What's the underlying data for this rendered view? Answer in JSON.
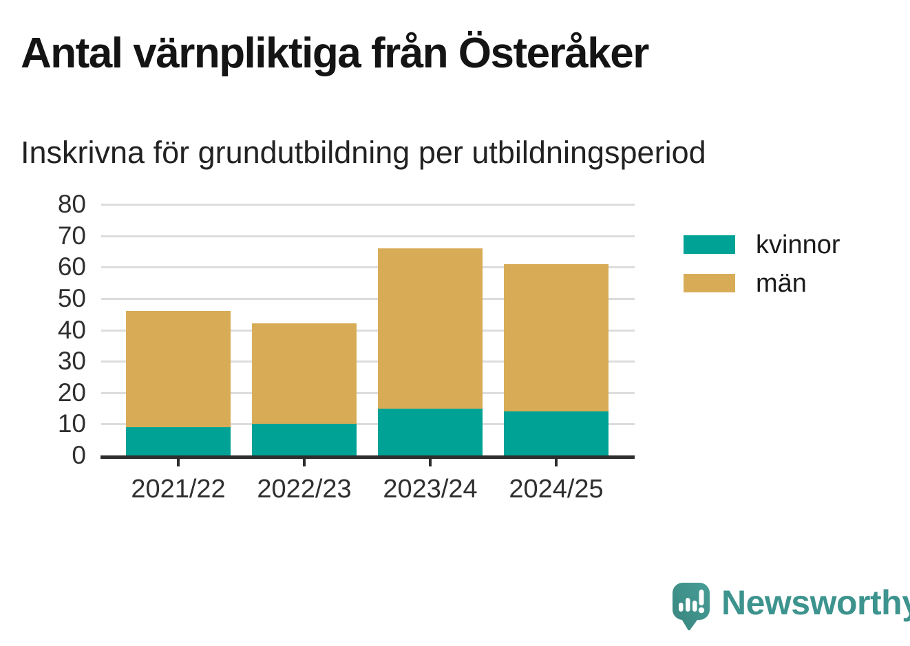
{
  "header": {
    "title": "Antal värnpliktiga från Österåker",
    "subtitle": "Inskrivna för grundutbildning per utbildningsperiod"
  },
  "chart_data": {
    "type": "bar",
    "stacked": true,
    "title": "Antal värnpliktiga från Österåker",
    "subtitle": "Inskrivna för grundutbildning per utbildningsperiod",
    "categories": [
      "2021/22",
      "2022/23",
      "2023/24",
      "2024/25"
    ],
    "series": [
      {
        "name": "kvinnor",
        "color": "#00A296",
        "values": [
          9,
          10,
          15,
          14
        ]
      },
      {
        "name": "män",
        "color": "#D8AC57",
        "values": [
          37,
          32,
          51,
          47
        ]
      }
    ],
    "stack_totals": [
      46,
      42,
      66,
      61
    ],
    "ylim": [
      0,
      80
    ],
    "yticks": [
      0,
      10,
      20,
      30,
      40,
      50,
      60,
      70,
      80
    ],
    "xlabel": "",
    "ylabel": "",
    "grid": true,
    "legend_position": "right"
  },
  "colors": {
    "kvinnor": "#00A296",
    "man": "#D8AC57",
    "axis": "#2d2d2d",
    "gridline": "#dcdcdc",
    "brand_teal": "#3D938D"
  },
  "branding": {
    "logo_text": "Newsworthy",
    "logo_icon": "newsworthy-speech-bubble-barchart-icon"
  }
}
